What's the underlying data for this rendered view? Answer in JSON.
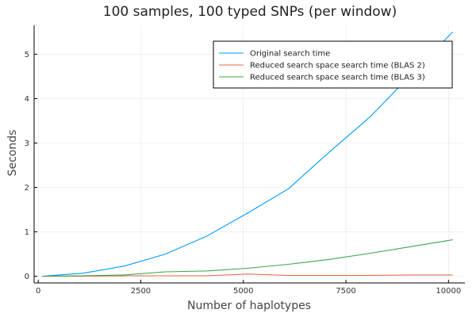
{
  "chart_data": {
    "type": "line",
    "title": "100 samples, 100 typed SNPs (per window)",
    "xlabel": "Number of haplotypes",
    "ylabel": "Seconds",
    "xlim": [
      -100,
      10400
    ],
    "ylim": [
      -0.15,
      5.65
    ],
    "xticks": [
      0,
      2500,
      5000,
      7500,
      10000
    ],
    "xtick_labels": [
      "0",
      "2500",
      "5000",
      "7500",
      "10000"
    ],
    "yticks": [
      0,
      1,
      2,
      3,
      4,
      5
    ],
    "ytick_labels": [
      "0",
      "1",
      "2",
      "3",
      "4",
      "5"
    ],
    "grid": true,
    "legend_position": "top-right",
    "x": [
      100,
      1100,
      2100,
      3100,
      4100,
      5100,
      6100,
      7100,
      8100,
      9100,
      10100
    ],
    "series": [
      {
        "name": "Original search time",
        "color": "#009AFA",
        "values": [
          0.0,
          0.07,
          0.23,
          0.5,
          0.9,
          1.42,
          1.97,
          2.8,
          3.6,
          4.55,
          5.5
        ]
      },
      {
        "name": "Reduced search space search time (BLAS 2)",
        "color": "#E26F46",
        "values": [
          0.0,
          0.0,
          0.01,
          0.01,
          0.01,
          0.05,
          0.02,
          0.02,
          0.02,
          0.03,
          0.03
        ]
      },
      {
        "name": "Reduced search space search time (BLAS 3)",
        "color": "#3DA44D",
        "values": [
          0.0,
          0.01,
          0.03,
          0.1,
          0.12,
          0.18,
          0.27,
          0.38,
          0.52,
          0.67,
          0.82
        ]
      }
    ]
  }
}
